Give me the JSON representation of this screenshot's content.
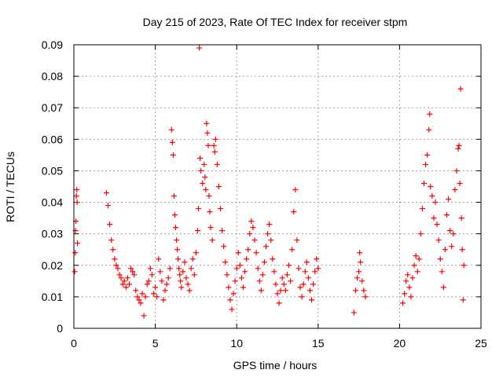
{
  "chart_data": {
    "type": "scatter",
    "title": "Day 215 of 2023, Rate Of TEC Index for receiver stpm",
    "xlabel": "GPS time / hours",
    "ylabel": "ROTI / TECUs",
    "xlim": [
      0,
      25
    ],
    "ylim": [
      0,
      0.09
    ],
    "x_ticks": [
      "0",
      "5",
      "10",
      "15",
      "20",
      "25"
    ],
    "y_ticks": [
      "0",
      "0.01",
      "0.02",
      "0.03",
      "0.04",
      "0.05",
      "0.06",
      "0.07",
      "0.08",
      "0.09"
    ],
    "grid": true,
    "marker": "plus",
    "color": "#ff0000",
    "series": [
      {
        "points": [
          [
            0.05,
            0.018
          ],
          [
            0.08,
            0.024
          ],
          [
            0.1,
            0.031
          ],
          [
            0.12,
            0.034
          ],
          [
            0.15,
            0.042
          ],
          [
            0.18,
            0.044
          ],
          [
            0.2,
            0.04
          ],
          [
            0.22,
            0.027
          ],
          [
            2.0,
            0.043
          ],
          [
            2.1,
            0.039
          ],
          [
            2.2,
            0.033
          ],
          [
            2.3,
            0.028
          ],
          [
            2.4,
            0.025
          ],
          [
            2.5,
            0.022
          ],
          [
            2.6,
            0.02
          ],
          [
            2.7,
            0.019
          ],
          [
            2.8,
            0.017
          ],
          [
            2.9,
            0.016
          ],
          [
            3.0,
            0.014
          ],
          [
            3.1,
            0.015
          ],
          [
            3.2,
            0.013
          ],
          [
            3.3,
            0.016
          ],
          [
            3.4,
            0.014
          ],
          [
            3.5,
            0.019
          ],
          [
            3.6,
            0.018
          ],
          [
            3.7,
            0.017
          ],
          [
            3.8,
            0.012
          ],
          [
            3.9,
            0.01
          ],
          [
            4.0,
            0.009
          ],
          [
            4.1,
            0.008
          ],
          [
            4.2,
            0.011
          ],
          [
            4.3,
            0.004
          ],
          [
            4.4,
            0.01
          ],
          [
            4.5,
            0.014
          ],
          [
            4.6,
            0.015
          ],
          [
            4.7,
            0.019
          ],
          [
            4.8,
            0.017
          ],
          [
            4.9,
            0.011
          ],
          [
            5.0,
            0.013
          ],
          [
            5.1,
            0.01
          ],
          [
            5.2,
            0.022
          ],
          [
            5.3,
            0.018
          ],
          [
            5.4,
            0.015
          ],
          [
            5.5,
            0.009
          ],
          [
            5.6,
            0.012
          ],
          [
            5.7,
            0.014
          ],
          [
            5.8,
            0.016
          ],
          [
            5.9,
            0.019
          ],
          [
            6.0,
            0.063
          ],
          [
            6.05,
            0.059
          ],
          [
            6.1,
            0.055
          ],
          [
            6.15,
            0.042
          ],
          [
            6.2,
            0.036
          ],
          [
            6.25,
            0.032
          ],
          [
            6.3,
            0.028
          ],
          [
            6.35,
            0.025
          ],
          [
            6.4,
            0.022
          ],
          [
            6.45,
            0.019
          ],
          [
            6.5,
            0.017
          ],
          [
            6.55,
            0.015
          ],
          [
            6.6,
            0.013
          ],
          [
            6.7,
            0.018
          ],
          [
            6.8,
            0.021
          ],
          [
            6.9,
            0.016
          ],
          [
            7.0,
            0.014
          ],
          [
            7.1,
            0.012
          ],
          [
            7.2,
            0.019
          ],
          [
            7.3,
            0.022
          ],
          [
            7.4,
            0.017
          ],
          [
            7.5,
            0.024
          ],
          [
            7.6,
            0.031
          ],
          [
            7.65,
            0.038
          ],
          [
            7.7,
            0.089
          ],
          [
            7.75,
            0.054
          ],
          [
            7.8,
            0.05
          ],
          [
            7.9,
            0.046
          ],
          [
            8.0,
            0.052
          ],
          [
            8.05,
            0.048
          ],
          [
            8.1,
            0.044
          ],
          [
            8.15,
            0.065
          ],
          [
            8.2,
            0.062
          ],
          [
            8.25,
            0.058
          ],
          [
            8.3,
            0.042
          ],
          [
            8.35,
            0.037
          ],
          [
            8.4,
            0.032
          ],
          [
            8.5,
            0.028
          ],
          [
            8.6,
            0.058
          ],
          [
            8.65,
            0.056
          ],
          [
            8.7,
            0.06
          ],
          [
            8.8,
            0.052
          ],
          [
            8.9,
            0.045
          ],
          [
            9.0,
            0.038
          ],
          [
            9.1,
            0.031
          ],
          [
            9.2,
            0.026
          ],
          [
            9.3,
            0.021
          ],
          [
            9.4,
            0.017
          ],
          [
            9.5,
            0.013
          ],
          [
            9.6,
            0.009
          ],
          [
            9.7,
            0.006
          ],
          [
            9.8,
            0.011
          ],
          [
            9.9,
            0.015
          ],
          [
            10.0,
            0.019
          ],
          [
            10.1,
            0.024
          ],
          [
            10.2,
            0.02
          ],
          [
            10.3,
            0.016
          ],
          [
            10.4,
            0.013
          ],
          [
            10.5,
            0.018
          ],
          [
            10.6,
            0.022
          ],
          [
            10.7,
            0.025
          ],
          [
            10.8,
            0.03
          ],
          [
            10.9,
            0.034
          ],
          [
            11.0,
            0.032
          ],
          [
            11.1,
            0.028
          ],
          [
            11.2,
            0.024
          ],
          [
            11.3,
            0.019
          ],
          [
            11.4,
            0.015
          ],
          [
            11.5,
            0.012
          ],
          [
            11.6,
            0.017
          ],
          [
            11.7,
            0.021
          ],
          [
            11.8,
            0.026
          ],
          [
            11.9,
            0.03
          ],
          [
            12.0,
            0.033
          ],
          [
            12.1,
            0.028
          ],
          [
            12.2,
            0.022
          ],
          [
            12.3,
            0.018
          ],
          [
            12.4,
            0.014
          ],
          [
            12.5,
            0.011
          ],
          [
            12.6,
            0.008
          ],
          [
            12.7,
            0.012
          ],
          [
            12.8,
            0.016
          ],
          [
            12.9,
            0.014
          ],
          [
            13.0,
            0.012
          ],
          [
            13.1,
            0.017
          ],
          [
            13.2,
            0.02
          ],
          [
            13.3,
            0.015
          ],
          [
            13.4,
            0.025
          ],
          [
            13.5,
            0.037
          ],
          [
            13.6,
            0.044
          ],
          [
            13.7,
            0.028
          ],
          [
            13.8,
            0.019
          ],
          [
            13.9,
            0.013
          ],
          [
            14.0,
            0.01
          ],
          [
            14.1,
            0.014
          ],
          [
            14.2,
            0.018
          ],
          [
            14.3,
            0.021
          ],
          [
            14.4,
            0.016
          ],
          [
            14.5,
            0.012
          ],
          [
            14.6,
            0.009
          ],
          [
            14.7,
            0.014
          ],
          [
            14.8,
            0.018
          ],
          [
            14.9,
            0.022
          ],
          [
            15.0,
            0.019
          ],
          [
            17.2,
            0.005
          ],
          [
            17.3,
            0.012
          ],
          [
            17.4,
            0.016
          ],
          [
            17.5,
            0.018
          ],
          [
            17.55,
            0.024
          ],
          [
            17.6,
            0.021
          ],
          [
            17.7,
            0.015
          ],
          [
            17.8,
            0.012
          ],
          [
            17.9,
            0.01
          ],
          [
            20.2,
            0.008
          ],
          [
            20.3,
            0.011
          ],
          [
            20.4,
            0.015
          ],
          [
            20.5,
            0.017
          ],
          [
            20.6,
            0.013
          ],
          [
            20.7,
            0.01
          ],
          [
            20.8,
            0.016
          ],
          [
            20.9,
            0.02
          ],
          [
            21.0,
            0.023
          ],
          [
            21.1,
            0.018
          ],
          [
            21.2,
            0.022
          ],
          [
            21.3,
            0.03
          ],
          [
            21.4,
            0.038
          ],
          [
            21.5,
            0.046
          ],
          [
            21.6,
            0.052
          ],
          [
            21.7,
            0.055
          ],
          [
            21.8,
            0.063
          ],
          [
            21.85,
            0.068
          ],
          [
            21.9,
            0.045
          ],
          [
            22.0,
            0.042
          ],
          [
            22.1,
            0.035
          ],
          [
            22.2,
            0.04
          ],
          [
            22.3,
            0.033
          ],
          [
            22.4,
            0.028
          ],
          [
            22.5,
            0.022
          ],
          [
            22.6,
            0.018
          ],
          [
            22.7,
            0.013
          ],
          [
            22.8,
            0.025
          ],
          [
            22.9,
            0.036
          ],
          [
            23.0,
            0.041
          ],
          [
            23.1,
            0.031
          ],
          [
            23.2,
            0.026
          ],
          [
            23.3,
            0.03
          ],
          [
            23.4,
            0.044
          ],
          [
            23.5,
            0.05
          ],
          [
            23.6,
            0.057
          ],
          [
            23.65,
            0.058
          ],
          [
            23.7,
            0.046
          ],
          [
            23.75,
            0.076
          ],
          [
            23.8,
            0.035
          ],
          [
            23.85,
            0.025
          ],
          [
            23.9,
            0.009
          ],
          [
            23.95,
            0.02
          ]
        ]
      }
    ]
  }
}
